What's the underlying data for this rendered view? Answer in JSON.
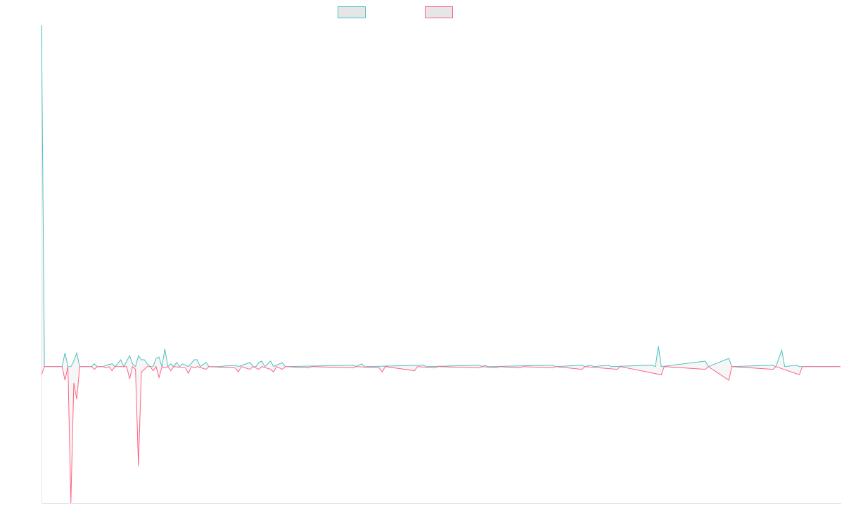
{
  "chart_data": {
    "type": "area",
    "xlabel": "",
    "ylabel": "",
    "ylim": [
      -100,
      250
    ],
    "baseline": 0,
    "n_points": 273,
    "grid": false,
    "legend_position": "top-center",
    "series": [
      {
        "key": "positive",
        "color": "#4bc0c0",
        "fill": "#e6e6e6",
        "points": [
          [
            0,
            250
          ],
          [
            1,
            0
          ],
          [
            3,
            0
          ],
          [
            5,
            0
          ],
          [
            7,
            0
          ],
          [
            8,
            10
          ],
          [
            9,
            0
          ],
          [
            10,
            0
          ],
          [
            11,
            4
          ],
          [
            12,
            10
          ],
          [
            13,
            0
          ],
          [
            16,
            0
          ],
          [
            17,
            0
          ],
          [
            18,
            2
          ],
          [
            19,
            0
          ],
          [
            21,
            0
          ],
          [
            22,
            1
          ],
          [
            24,
            2
          ],
          [
            25,
            0
          ],
          [
            27,
            5
          ],
          [
            28,
            0
          ],
          [
            30,
            8
          ],
          [
            31,
            2
          ],
          [
            32,
            0
          ],
          [
            33,
            8
          ],
          [
            34,
            5
          ],
          [
            35,
            5
          ],
          [
            36,
            2
          ],
          [
            37,
            0
          ],
          [
            38,
            0
          ],
          [
            39,
            6
          ],
          [
            40,
            7
          ],
          [
            41,
            0
          ],
          [
            42,
            13
          ],
          [
            43,
            0
          ],
          [
            44,
            2
          ],
          [
            45,
            0
          ],
          [
            46,
            3
          ],
          [
            47,
            0
          ],
          [
            48,
            2
          ],
          [
            50,
            0
          ],
          [
            52,
            5
          ],
          [
            53,
            5
          ],
          [
            54,
            0
          ],
          [
            56,
            3
          ],
          [
            57,
            0
          ],
          [
            60,
            0
          ],
          [
            66,
            1
          ],
          [
            67,
            0
          ],
          [
            71,
            3
          ],
          [
            72,
            0
          ],
          [
            73,
            0
          ],
          [
            74,
            3
          ],
          [
            75,
            4
          ],
          [
            76,
            0
          ],
          [
            78,
            4
          ],
          [
            79,
            0
          ],
          [
            82,
            3
          ],
          [
            83,
            0
          ],
          [
            106,
            1
          ],
          [
            107,
            0
          ],
          [
            109,
            2
          ],
          [
            110,
            0
          ],
          [
            130,
            1
          ],
          [
            131,
            0
          ],
          [
            149,
            1
          ],
          [
            150,
            0
          ],
          [
            151,
            1
          ],
          [
            152,
            0
          ],
          [
            174,
            1
          ],
          [
            175,
            0
          ],
          [
            184,
            1
          ],
          [
            185,
            0
          ],
          [
            187,
            1
          ],
          [
            188,
            0
          ],
          [
            193,
            1
          ],
          [
            194,
            0
          ],
          [
            208,
            1
          ],
          [
            209,
            0
          ],
          [
            210,
            15
          ],
          [
            211,
            0
          ],
          [
            226,
            4
          ],
          [
            227,
            0
          ],
          [
            234,
            6
          ],
          [
            235,
            0
          ],
          [
            249,
            1
          ],
          [
            250,
            0
          ],
          [
            252,
            12
          ],
          [
            253,
            0
          ],
          [
            257,
            1
          ],
          [
            258,
            0
          ],
          [
            272,
            0
          ]
        ]
      },
      {
        "key": "negative",
        "color": "#ff6384",
        "fill": "#e6e6e6",
        "points": [
          [
            0,
            -6
          ],
          [
            1,
            0
          ],
          [
            7,
            0
          ],
          [
            8,
            -10
          ],
          [
            9,
            0
          ],
          [
            10,
            -100
          ],
          [
            11,
            -12
          ],
          [
            12,
            -24
          ],
          [
            13,
            0
          ],
          [
            17,
            0
          ],
          [
            18,
            -2
          ],
          [
            19,
            0
          ],
          [
            21,
            0
          ],
          [
            22,
            -1
          ],
          [
            23,
            0
          ],
          [
            24,
            -3
          ],
          [
            25,
            0
          ],
          [
            29,
            0
          ],
          [
            30,
            -9
          ],
          [
            31,
            0
          ],
          [
            32,
            -2
          ],
          [
            33,
            -73
          ],
          [
            34,
            -4
          ],
          [
            35,
            -2
          ],
          [
            36,
            0
          ],
          [
            37,
            0
          ],
          [
            38,
            -3
          ],
          [
            39,
            0
          ],
          [
            40,
            -8
          ],
          [
            41,
            0
          ],
          [
            42,
            -1
          ],
          [
            43,
            0
          ],
          [
            44,
            -3
          ],
          [
            45,
            0
          ],
          [
            49,
            -1
          ],
          [
            50,
            -5
          ],
          [
            51,
            0
          ],
          [
            52,
            -1
          ],
          [
            53,
            0
          ],
          [
            56,
            -2
          ],
          [
            57,
            0
          ],
          [
            66,
            -1
          ],
          [
            67,
            -4
          ],
          [
            68,
            0
          ],
          [
            71,
            -2
          ],
          [
            72,
            0
          ],
          [
            73,
            -1
          ],
          [
            74,
            -2
          ],
          [
            75,
            0
          ],
          [
            78,
            -2
          ],
          [
            79,
            -4
          ],
          [
            80,
            0
          ],
          [
            82,
            -2
          ],
          [
            83,
            0
          ],
          [
            91,
            -1
          ],
          [
            92,
            0
          ],
          [
            106,
            -1
          ],
          [
            107,
            0
          ],
          [
            115,
            -1
          ],
          [
            116,
            -4
          ],
          [
            117,
            0
          ],
          [
            127,
            -3
          ],
          [
            128,
            0
          ],
          [
            134,
            -1
          ],
          [
            135,
            0
          ],
          [
            149,
            -1
          ],
          [
            150,
            0
          ],
          [
            155,
            -1
          ],
          [
            156,
            0
          ],
          [
            163,
            -1
          ],
          [
            164,
            0
          ],
          [
            174,
            -1
          ],
          [
            175,
            0
          ],
          [
            184,
            -2
          ],
          [
            185,
            0
          ],
          [
            196,
            -2
          ],
          [
            197,
            0
          ],
          [
            211,
            -6
          ],
          [
            212,
            0
          ],
          [
            226,
            -2
          ],
          [
            227,
            0
          ],
          [
            234,
            -10
          ],
          [
            235,
            0
          ],
          [
            249,
            -2
          ],
          [
            250,
            0
          ],
          [
            258,
            -6
          ],
          [
            259,
            0
          ],
          [
            272,
            0
          ]
        ]
      }
    ]
  }
}
